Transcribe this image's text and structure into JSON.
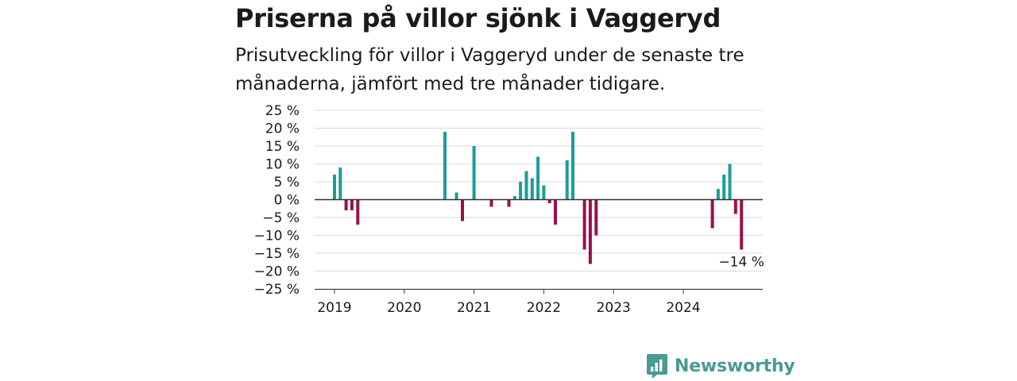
{
  "header": {
    "title": "Priserna på villor sjönk i Vaggeryd",
    "subtitle": "Prisutveckling för villor i Vaggeryd under de senaste tre månaderna, jämfört med tre månader tidigare."
  },
  "brand": {
    "name": "Newsworthy",
    "icon": "newsworthy-logo-icon",
    "color": "#4a9a94"
  },
  "colors": {
    "positive": "#1a9e97",
    "negative": "#99104a",
    "grid": "#d9d9d9",
    "zero_line": "#333333"
  },
  "chart_data": {
    "type": "bar",
    "title": "Priserna på villor sjönk i Vaggeryd",
    "subtitle": "Prisutveckling för villor i Vaggeryd under de senaste tre månaderna, jämfört med tre månader tidigare.",
    "xlabel": "",
    "ylabel": "",
    "ylim": [
      -25,
      25
    ],
    "yticks": [
      25,
      20,
      15,
      10,
      5,
      0,
      -5,
      -10,
      -15,
      -20,
      -25
    ],
    "ytick_labels": [
      "25 %",
      "20 %",
      "15 %",
      "10 %",
      "5 %",
      "0 %",
      "−5 %",
      "−10 %",
      "−15 %",
      "−20 %",
      "−25 %"
    ],
    "xticks": [
      "2019",
      "2020",
      "2021",
      "2022",
      "2023",
      "2024"
    ],
    "xlim": [
      "2019-01",
      "2024-12"
    ],
    "grid": true,
    "series": [
      {
        "unit": "%",
        "points": [
          {
            "x": "2019-01",
            "y": 7
          },
          {
            "x": "2019-02",
            "y": 9
          },
          {
            "x": "2019-03",
            "y": -3
          },
          {
            "x": "2019-04",
            "y": -3
          },
          {
            "x": "2019-05",
            "y": -7
          },
          {
            "x": "2020-08",
            "y": 19
          },
          {
            "x": "2020-10",
            "y": 2
          },
          {
            "x": "2020-11",
            "y": -6
          },
          {
            "x": "2021-01",
            "y": 15
          },
          {
            "x": "2021-04",
            "y": -2
          },
          {
            "x": "2021-07",
            "y": -2
          },
          {
            "x": "2021-08",
            "y": 1
          },
          {
            "x": "2021-09",
            "y": 5
          },
          {
            "x": "2021-10",
            "y": 8
          },
          {
            "x": "2021-11",
            "y": 6
          },
          {
            "x": "2021-12",
            "y": 12
          },
          {
            "x": "2022-01",
            "y": 4
          },
          {
            "x": "2022-02",
            "y": -1
          },
          {
            "x": "2022-03",
            "y": -7
          },
          {
            "x": "2022-05",
            "y": 11
          },
          {
            "x": "2022-06",
            "y": 19
          },
          {
            "x": "2022-08",
            "y": -14
          },
          {
            "x": "2022-09",
            "y": -18
          },
          {
            "x": "2022-10",
            "y": -10
          },
          {
            "x": "2024-06",
            "y": -8
          },
          {
            "x": "2024-07",
            "y": 3
          },
          {
            "x": "2024-08",
            "y": 7
          },
          {
            "x": "2024-09",
            "y": 10
          },
          {
            "x": "2024-10",
            "y": -4
          },
          {
            "x": "2024-11",
            "y": -14
          }
        ]
      }
    ],
    "annotations": [
      {
        "x": "2024-11",
        "y": -14,
        "label": "−14 %"
      }
    ]
  }
}
